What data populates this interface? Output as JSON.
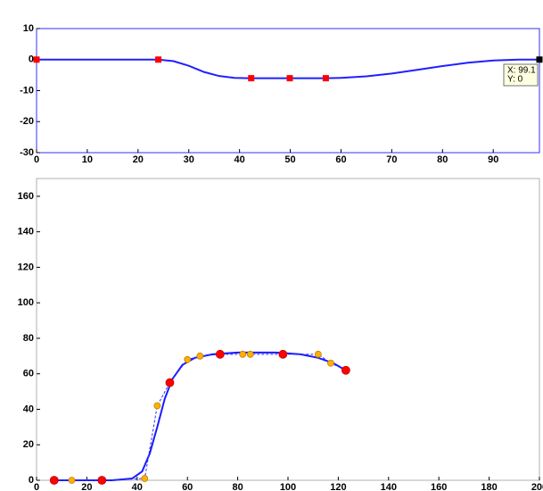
{
  "chart_data": [
    {
      "type": "line",
      "xlim": [
        0,
        99.1
      ],
      "ylim": [
        -30,
        10
      ],
      "xticks": [
        0,
        10,
        20,
        30,
        40,
        50,
        60,
        70,
        80,
        90
      ],
      "yticks": [
        -30,
        -20,
        -10,
        0,
        10
      ],
      "frame_color": "#3030ff",
      "series": [
        {
          "color": "#2020ff",
          "line": "solid",
          "marker": "none",
          "x": [
            0,
            24,
            27,
            30,
            33,
            36,
            39,
            42,
            57,
            60,
            65,
            70,
            75,
            80,
            85,
            90,
            95,
            99.1
          ],
          "values": [
            0,
            0,
            -0.5,
            -2,
            -4,
            -5.3,
            -5.9,
            -6,
            -6,
            -5.9,
            -5.4,
            -4.5,
            -3.3,
            -2.1,
            -1,
            -0.3,
            0,
            0
          ]
        },
        {
          "color": "#ff0000",
          "line": "none",
          "marker": "square",
          "x": [
            0,
            24,
            42.3,
            49.9,
            57
          ],
          "values": [
            0,
            0,
            -6,
            -6,
            -6
          ]
        },
        {
          "color": "#000000",
          "line": "none",
          "marker": "square",
          "x": [
            99.1
          ],
          "values": [
            0
          ]
        }
      ],
      "annotation": [
        "X: 99.1",
        "Y: 0"
      ]
    },
    {
      "type": "line",
      "xlim": [
        0,
        200
      ],
      "ylim": [
        0,
        170
      ],
      "xticks": [
        0,
        20,
        40,
        60,
        80,
        100,
        120,
        140,
        160,
        180,
        200
      ],
      "yticks": [
        0,
        20,
        40,
        60,
        80,
        100,
        120,
        140,
        160
      ],
      "frame_color": "#b0b0b0",
      "series": [
        {
          "color": "#1a1aff",
          "line": "solid",
          "marker": "none",
          "x": [
            7,
            20,
            30,
            38,
            42,
            45,
            48,
            51,
            54,
            58,
            63,
            70,
            80,
            95,
            105,
            112,
            118,
            123
          ],
          "values": [
            0,
            0,
            0,
            1,
            5,
            15,
            30,
            46,
            57,
            65,
            69,
            71,
            72,
            72,
            71,
            69,
            66,
            62
          ]
        },
        {
          "color": "#3030ff",
          "line": "dashed",
          "marker": "circle",
          "x": [
            7,
            14,
            26,
            43,
            48,
            53,
            60,
            65,
            73,
            82,
            85,
            98,
            112,
            117,
            123
          ],
          "values": [
            0,
            0,
            0,
            1,
            42,
            55,
            68,
            70,
            71,
            71,
            71,
            71,
            71,
            66,
            62
          ],
          "marker_colors": [
            "#ff0000",
            "#ffb000",
            "#ff0000",
            "#ffb000",
            "#ffb000",
            "#ff0000",
            "#ffb000",
            "#ffb000",
            "#ff0000",
            "#ffb000",
            "#ffb000",
            "#ff0000",
            "#ffb000",
            "#ffb000",
            "#ff0000"
          ]
        }
      ]
    }
  ]
}
